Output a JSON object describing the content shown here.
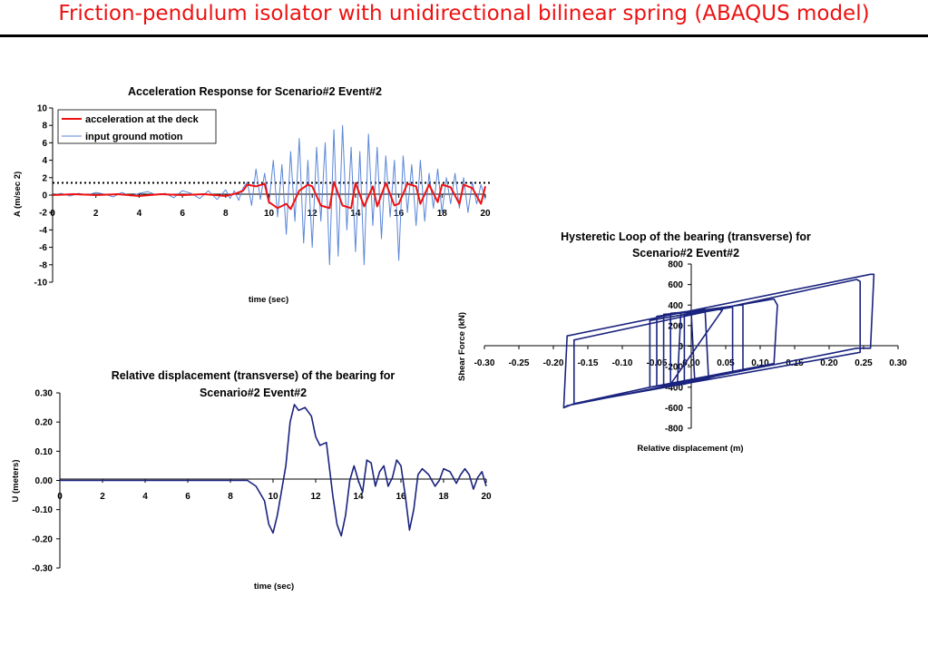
{
  "slide": {
    "title": "Friction-pendulum isolator with unidirectional bilinear spring (ABAQUS model)"
  },
  "chart_data": [
    {
      "type": "line",
      "title": "Acceleration Response for Scenario#2 Event#2",
      "xlabel": "time (sec)",
      "ylabel": "A (m/sec 2)",
      "xlim": [
        0,
        20
      ],
      "ylim": [
        -10,
        10
      ],
      "xticks": [
        "0",
        "2",
        "4",
        "6",
        "8",
        "10",
        "12",
        "14",
        "16",
        "18",
        "20"
      ],
      "yticks": [
        "10",
        "8",
        "6",
        "4",
        "2",
        "0",
        "-2",
        "-4",
        "-6",
        "-8",
        "-10"
      ],
      "grid": false,
      "legend": "top-left",
      "reference_line": {
        "style": "dotted",
        "y": 1.4
      },
      "series": [
        {
          "name": "input ground motion",
          "color": "#5b86d8",
          "x": [
            0.0,
            0.4,
            0.8,
            1.2,
            1.6,
            2.0,
            2.4,
            2.8,
            3.2,
            3.6,
            4.0,
            4.4,
            4.8,
            5.2,
            5.6,
            6.0,
            6.4,
            6.8,
            7.2,
            7.6,
            8.0,
            8.2,
            8.4,
            8.6,
            8.8,
            9.0,
            9.2,
            9.4,
            9.6,
            9.8,
            10.0,
            10.2,
            10.4,
            10.6,
            10.8,
            11.0,
            11.2,
            11.4,
            11.6,
            11.8,
            12.0,
            12.2,
            12.4,
            12.6,
            12.8,
            13.0,
            13.2,
            13.4,
            13.6,
            13.8,
            14.0,
            14.2,
            14.4,
            14.6,
            14.8,
            15.0,
            15.2,
            15.4,
            15.6,
            15.8,
            16.0,
            16.2,
            16.4,
            16.6,
            16.8,
            17.0,
            17.2,
            17.4,
            17.6,
            17.8,
            18.0,
            18.2,
            18.4,
            18.6,
            18.8,
            19.0,
            19.2,
            19.4,
            19.6,
            19.8,
            20.0
          ],
          "y": [
            0.0,
            0.2,
            -0.1,
            0.2,
            0.0,
            0.3,
            0.1,
            -0.2,
            0.3,
            -0.1,
            0.2,
            0.4,
            0.0,
            0.2,
            -0.3,
            0.5,
            0.2,
            -0.4,
            0.5,
            -0.5,
            0.6,
            -0.4,
            0.5,
            -0.6,
            0.8,
            1.5,
            -1.2,
            3.0,
            -0.5,
            2.5,
            -1.0,
            4.0,
            -2.5,
            3.5,
            -4.5,
            5.0,
            -3.0,
            6.5,
            -5.5,
            4.0,
            -6.0,
            5.5,
            -3.0,
            6.0,
            -8.0,
            7.5,
            -7.0,
            8.0,
            -4.0,
            5.5,
            -6.5,
            5.0,
            -8.0,
            7.0,
            -3.5,
            5.5,
            -5.0,
            4.5,
            -2.5,
            4.0,
            -7.5,
            4.5,
            -2.0,
            3.5,
            -3.5,
            4.0,
            -3.0,
            2.5,
            -1.5,
            3.0,
            -2.0,
            2.0,
            -1.0,
            2.5,
            -1.5,
            2.0,
            -2.0,
            1.5,
            -1.0,
            1.2,
            -0.5
          ]
        },
        {
          "name": "acceleration at the deck",
          "color": "#ee1111",
          "x": [
            0.0,
            1.0,
            2.0,
            3.0,
            4.0,
            5.0,
            6.0,
            7.0,
            8.0,
            8.5,
            8.8,
            9.0,
            9.4,
            9.8,
            10.0,
            10.4,
            10.8,
            11.0,
            11.4,
            11.8,
            12.0,
            12.4,
            12.8,
            13.0,
            13.4,
            13.8,
            14.0,
            14.4,
            14.8,
            15.0,
            15.4,
            15.8,
            16.0,
            16.4,
            16.8,
            17.0,
            17.4,
            17.8,
            18.0,
            18.4,
            18.8,
            19.0,
            19.4,
            19.8,
            20.0
          ],
          "y": [
            0.0,
            0.1,
            0.0,
            0.1,
            -0.1,
            0.1,
            0.0,
            0.1,
            -0.1,
            0.2,
            0.5,
            1.2,
            1.0,
            1.3,
            -0.8,
            -1.5,
            -1.0,
            -1.6,
            0.5,
            1.2,
            1.0,
            -1.2,
            -1.5,
            1.5,
            -1.2,
            -1.5,
            1.4,
            -1.3,
            1.0,
            -1.3,
            1.4,
            -1.2,
            -1.0,
            1.3,
            1.0,
            -1.0,
            1.2,
            -0.8,
            1.2,
            0.9,
            -1.0,
            1.2,
            0.8,
            -1.0,
            1.0
          ]
        }
      ]
    },
    {
      "type": "line",
      "title": "Relative displacement (transverse) of the bearing for Scenario#2 Event#2",
      "xlabel": "time (sec)",
      "ylabel": "U (meters)",
      "xlim": [
        0,
        20
      ],
      "ylim": [
        -0.3,
        0.3
      ],
      "xticks": [
        "0",
        "2",
        "4",
        "6",
        "8",
        "10",
        "12",
        "14",
        "16",
        "18",
        "20"
      ],
      "yticks": [
        "0.30",
        "0.20",
        "0.10",
        "0.00",
        "-0.10",
        "-0.20",
        "-0.30"
      ],
      "grid": false,
      "series": [
        {
          "color": "#1a237e",
          "x": [
            0.0,
            2.0,
            4.0,
            6.0,
            8.0,
            8.8,
            9.2,
            9.6,
            9.8,
            10.0,
            10.2,
            10.6,
            10.8,
            11.0,
            11.2,
            11.5,
            11.8,
            12.0,
            12.2,
            12.5,
            12.8,
            13.0,
            13.2,
            13.4,
            13.6,
            13.8,
            14.0,
            14.2,
            14.4,
            14.6,
            14.8,
            15.0,
            15.2,
            15.4,
            15.6,
            15.8,
            16.0,
            16.2,
            16.4,
            16.6,
            16.8,
            17.0,
            17.3,
            17.6,
            17.8,
            18.0,
            18.3,
            18.6,
            18.8,
            19.0,
            19.2,
            19.4,
            19.6,
            19.8,
            20.0
          ],
          "y": [
            0.0,
            0.0,
            0.0,
            0.0,
            0.0,
            0.0,
            -0.02,
            -0.07,
            -0.15,
            -0.18,
            -0.12,
            0.05,
            0.2,
            0.26,
            0.24,
            0.25,
            0.22,
            0.15,
            0.12,
            0.13,
            -0.05,
            -0.15,
            -0.19,
            -0.12,
            0.0,
            0.05,
            0.0,
            -0.04,
            0.07,
            0.06,
            -0.02,
            0.03,
            0.05,
            -0.02,
            0.01,
            0.07,
            0.05,
            -0.05,
            -0.17,
            -0.1,
            0.02,
            0.04,
            0.02,
            -0.02,
            0.0,
            0.04,
            0.03,
            -0.01,
            0.02,
            0.04,
            0.02,
            -0.03,
            0.01,
            0.03,
            -0.02
          ]
        }
      ]
    },
    {
      "type": "line",
      "title": "Hysteretic Loop of the bearing (transverse) for Scenario#2 Event#2",
      "xlabel": "Relative displacement (m)",
      "ylabel": "Shear Force (kN)",
      "xlim": [
        -0.3,
        0.3
      ],
      "ylim": [
        -800,
        800
      ],
      "xticks": [
        "-0.30",
        "-0.25",
        "-0.20",
        "-0.15",
        "-0.10",
        "-0.05",
        "0.00",
        "0.05",
        "0.10",
        "0.15",
        "0.20",
        "0.25",
        "0.30"
      ],
      "yticks": [
        "800",
        "600",
        "400",
        "200",
        "0",
        "-200",
        "-400",
        "-600",
        "-800"
      ],
      "grid": false,
      "series": [
        {
          "color": "#1a237e",
          "x": [
            -0.185,
            -0.18,
            0.26,
            0.265,
            0.26,
            0.24,
            -0.18,
            -0.185,
            -0.185,
            -0.17,
            -0.17,
            0.24,
            0.245,
            0.245,
            -0.17,
            -0.06,
            -0.06,
            0.12,
            0.125,
            0.12,
            -0.06,
            -0.05,
            -0.05,
            0.07,
            0.075,
            0.075,
            -0.05,
            -0.03,
            -0.03,
            0.04,
            0.045,
            -0.03,
            -0.01,
            -0.01,
            0.06,
            0.06,
            -0.01,
            -0.02,
            -0.015,
            0.02,
            0.025,
            -0.02,
            -0.04,
            -0.04,
            0.0,
            0.005,
            -0.04
          ],
          "y": [
            -600,
            100,
            700,
            700,
            -20,
            -20,
            -580,
            -600,
            -600,
            -560,
            60,
            650,
            630,
            -60,
            -560,
            -400,
            250,
            460,
            400,
            -170,
            -400,
            -390,
            290,
            400,
            400,
            -230,
            -390,
            -370,
            320,
            360,
            350,
            -370,
            -370,
            300,
            380,
            -250,
            -370,
            -350,
            330,
            360,
            -300,
            -350,
            -390,
            310,
            330,
            -330,
            -390
          ]
        }
      ]
    }
  ]
}
